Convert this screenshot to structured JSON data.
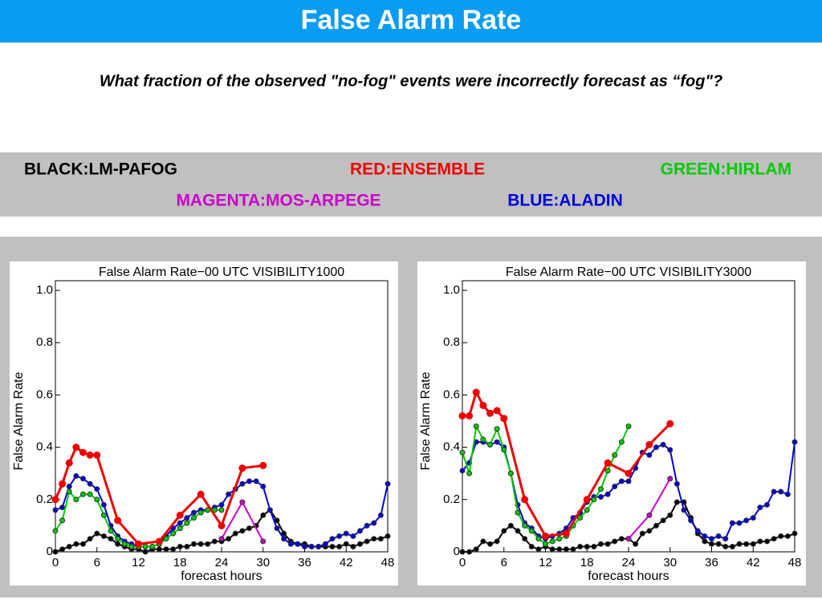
{
  "header": {
    "title": "False Alarm Rate",
    "question": "What fraction of the observed \"no-fog\" events were incorrectly forecast as “fog\"?"
  },
  "legend": [
    {
      "label": "BLACK:LM-PAFOG",
      "color": "#000000"
    },
    {
      "label": "RED:ENSEMBLE",
      "color": "#ee0000"
    },
    {
      "label": "GREEN:HIRLAM",
      "color": "#00cc00"
    },
    {
      "label": "MAGENTA:MOS-ARPEGE",
      "color": "#cc00cc"
    },
    {
      "label": "BLUE:ALADIN",
      "color": "#0000dd"
    }
  ],
  "chart_data": [
    {
      "type": "line",
      "title": "False Alarm Rate−00 UTC VISIBILITY1000",
      "x_label": "forecast hours",
      "y_label": "False Alarm Rate",
      "xlim": [
        0,
        48
      ],
      "ylim": [
        0,
        1
      ],
      "xticks": [
        0,
        6,
        12,
        18,
        24,
        30,
        36,
        42,
        48
      ],
      "yticks": [
        0,
        0.2,
        0.4,
        0.6,
        0.8,
        {
          "value": 1,
          "label": "1.0"
        }
      ],
      "series": [
        {
          "color": "#000000",
          "x": [
            0,
            1,
            2,
            3,
            4,
            5,
            6,
            7,
            8,
            9,
            10,
            11,
            12,
            13,
            14,
            15,
            16,
            17,
            18,
            19,
            20,
            21,
            22,
            23,
            24,
            25,
            26,
            27,
            28,
            29,
            30,
            31,
            32,
            33,
            34,
            35,
            36,
            37,
            38,
            39,
            40,
            41,
            42,
            43,
            44,
            45,
            46,
            47,
            48
          ],
          "values": [
            0,
            0.01,
            0.02,
            0.03,
            0.03,
            0.05,
            0.07,
            0.06,
            0.05,
            0.03,
            0.02,
            0.01,
            0.01,
            0,
            0.01,
            0.01,
            0.01,
            0.01,
            0.02,
            0.02,
            0.03,
            0.03,
            0.03,
            0.04,
            0.04,
            0.05,
            0.07,
            0.08,
            0.09,
            0.1,
            0.14,
            0.16,
            0.12,
            0.07,
            0.04,
            0.03,
            0.03,
            0.02,
            0.02,
            0.02,
            0.02,
            0.02,
            0.03,
            0.02,
            0.03,
            0.04,
            0.05,
            0.05,
            0.06
          ]
        },
        {
          "color": "#0000dd",
          "x": [
            0,
            1,
            2,
            3,
            4,
            5,
            6,
            7,
            8,
            9,
            10,
            11,
            12,
            13,
            14,
            15,
            16,
            17,
            18,
            19,
            20,
            21,
            22,
            23,
            24,
            25,
            26,
            27,
            28,
            29,
            30,
            31,
            32,
            33,
            34,
            35,
            36,
            37,
            38,
            39,
            40,
            41,
            42,
            43,
            44,
            45,
            46,
            47,
            48
          ],
          "values": [
            0.16,
            0.17,
            0.25,
            0.29,
            0.28,
            0.26,
            0.24,
            0.18,
            0.1,
            0.06,
            0.04,
            0.03,
            0.02,
            0.02,
            0.02,
            0.03,
            0.06,
            0.09,
            0.11,
            0.13,
            0.15,
            0.16,
            0.16,
            0.17,
            0.18,
            0.22,
            0.24,
            0.26,
            0.27,
            0.27,
            0.25,
            0.16,
            0.09,
            0.05,
            0.03,
            0.03,
            0.02,
            0.02,
            0.02,
            0.03,
            0.05,
            0.06,
            0.07,
            0.06,
            0.08,
            0.1,
            0.11,
            0.14,
            0.26
          ]
        },
        {
          "color": "#00cc00",
          "x": [
            0,
            1,
            2,
            3,
            4,
            5,
            6,
            7,
            8,
            9,
            10,
            11,
            12,
            13,
            14,
            15,
            16,
            17,
            18,
            19,
            20,
            21,
            22,
            23,
            24
          ],
          "values": [
            0.08,
            0.12,
            0.23,
            0.2,
            0.22,
            0.22,
            0.2,
            0.14,
            0.08,
            0.05,
            0.03,
            0.02,
            0.02,
            0.02,
            0.02,
            0.03,
            0.05,
            0.07,
            0.09,
            0.11,
            0.13,
            0.15,
            0.16,
            0.16,
            0.16
          ]
        },
        {
          "color": "#cc00cc",
          "x": [
            24,
            27,
            30
          ],
          "values": [
            0.05,
            0.19,
            0.04
          ]
        },
        {
          "color": "#ee0000",
          "x": [
            0,
            1,
            2,
            3,
            4,
            5,
            6,
            9,
            12,
            15,
            18,
            21,
            24,
            27,
            30
          ],
          "values": [
            0.2,
            0.26,
            0.34,
            0.4,
            0.38,
            0.37,
            0.37,
            0.12,
            0.03,
            0.04,
            0.14,
            0.22,
            0.1,
            0.32,
            0.33
          ]
        }
      ]
    },
    {
      "type": "line",
      "title": "False Alarm Rate−00 UTC VISIBILITY3000",
      "x_label": "forecast hours",
      "y_label": "False Alarm Rate",
      "xlim": [
        0,
        48
      ],
      "ylim": [
        0,
        1
      ],
      "xticks": [
        0,
        6,
        12,
        18,
        24,
        30,
        36,
        42,
        48
      ],
      "yticks": [
        0,
        0.2,
        0.4,
        0.6,
        0.8,
        {
          "value": 1,
          "label": "1.0"
        }
      ],
      "series": [
        {
          "color": "#000000",
          "x": [
            0,
            1,
            2,
            3,
            4,
            5,
            6,
            7,
            8,
            9,
            10,
            11,
            12,
            13,
            14,
            15,
            16,
            17,
            18,
            19,
            20,
            21,
            22,
            23,
            24,
            25,
            26,
            27,
            28,
            29,
            30,
            31,
            32,
            33,
            34,
            35,
            36,
            37,
            38,
            39,
            40,
            41,
            42,
            43,
            44,
            45,
            46,
            47,
            48
          ],
          "values": [
            0,
            0,
            0.01,
            0.04,
            0.03,
            0.04,
            0.08,
            0.1,
            0.08,
            0.05,
            0.02,
            0.01,
            0.02,
            0.01,
            0.01,
            0.01,
            0.01,
            0.02,
            0.02,
            0.02,
            0.03,
            0.03,
            0.04,
            0.05,
            0.05,
            0.03,
            0.07,
            0.08,
            0.1,
            0.12,
            0.14,
            0.19,
            0.19,
            0.13,
            0.07,
            0.04,
            0.03,
            0.03,
            0.02,
            0.02,
            0.03,
            0.03,
            0.03,
            0.04,
            0.04,
            0.05,
            0.06,
            0.06,
            0.07
          ]
        },
        {
          "color": "#0000dd",
          "x": [
            0,
            1,
            2,
            3,
            4,
            5,
            6,
            7,
            8,
            9,
            10,
            11,
            12,
            13,
            14,
            15,
            16,
            17,
            18,
            19,
            20,
            21,
            22,
            23,
            24,
            25,
            26,
            27,
            28,
            29,
            30,
            31,
            32,
            33,
            34,
            35,
            36,
            37,
            38,
            39,
            40,
            41,
            42,
            43,
            44,
            45,
            46,
            47,
            48
          ],
          "values": [
            0.31,
            0.34,
            0.42,
            0.42,
            0.41,
            0.42,
            0.4,
            0.3,
            0.18,
            0.11,
            0.09,
            0.06,
            0.05,
            0.06,
            0.07,
            0.09,
            0.13,
            0.15,
            0.19,
            0.21,
            0.21,
            0.22,
            0.25,
            0.27,
            0.27,
            0.32,
            0.38,
            0.37,
            0.4,
            0.41,
            0.39,
            0.26,
            0.16,
            0.12,
            0.08,
            0.06,
            0.05,
            0.06,
            0.05,
            0.11,
            0.11,
            0.12,
            0.13,
            0.17,
            0.18,
            0.23,
            0.23,
            0.22,
            0.42
          ]
        },
        {
          "color": "#00cc00",
          "x": [
            0,
            1,
            2,
            3,
            4,
            5,
            6,
            7,
            8,
            9,
            10,
            11,
            12,
            13,
            14,
            15,
            16,
            17,
            18,
            19,
            20,
            21,
            22,
            23,
            24
          ],
          "values": [
            0.38,
            0.3,
            0.48,
            0.43,
            0.41,
            0.47,
            0.39,
            0.3,
            0.15,
            0.1,
            0.08,
            0.05,
            0.03,
            0.04,
            0.05,
            0.06,
            0.1,
            0.13,
            0.16,
            0.2,
            0.24,
            0.31,
            0.37,
            0.42,
            0.48
          ]
        },
        {
          "color": "#cc00cc",
          "x": [
            24,
            27,
            30
          ],
          "values": [
            0.05,
            0.14,
            0.28
          ]
        },
        {
          "color": "#ee0000",
          "x": [
            0,
            1,
            2,
            3,
            4,
            5,
            6,
            9,
            12,
            15,
            18,
            21,
            24,
            27,
            30
          ],
          "values": [
            0.52,
            0.52,
            0.61,
            0.56,
            0.53,
            0.54,
            0.51,
            0.2,
            0.06,
            0.07,
            0.2,
            0.34,
            0.3,
            0.41,
            0.49
          ]
        }
      ]
    }
  ]
}
